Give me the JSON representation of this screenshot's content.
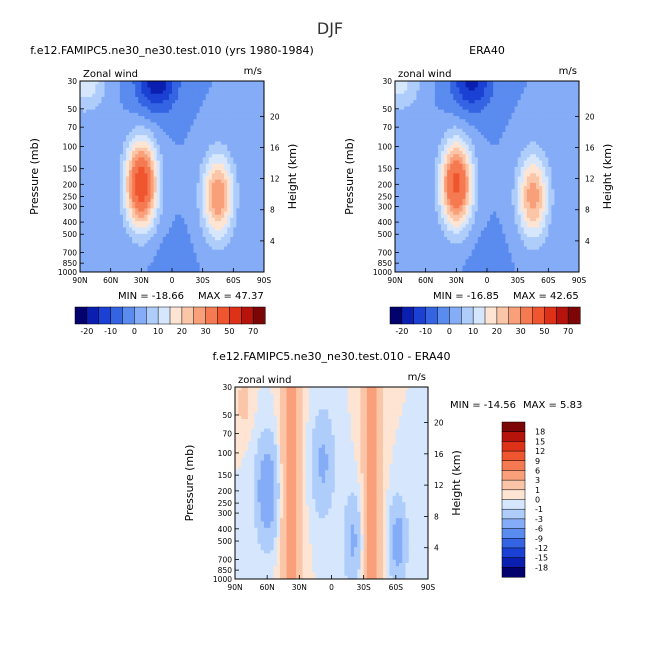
{
  "page_title": "DJF",
  "chart_data": [
    {
      "type": "heatmap",
      "title": "f.e12.FAMIPC5.ne30_ne30.test.010 (yrs 1980-1984)",
      "left_label": "Zonal wind",
      "units": "m/s",
      "ylabel": "Pressure (mb)",
      "ylabel_right": "Height (km)",
      "x_ticks": [
        "90N",
        "60N",
        "30N",
        "0",
        "30S",
        "60S",
        "90S"
      ],
      "y_ticks": [
        "30",
        "50",
        "70",
        "100",
        "150",
        "200",
        "250",
        "300",
        "400",
        "500",
        "700",
        "850",
        "1000"
      ],
      "y_right_ticks": [
        "20",
        "16",
        "12",
        "8",
        "4"
      ],
      "min_text": "MIN = -18.66",
      "max_text": "MAX = 47.37",
      "colorbar_labels": [
        "-20",
        "-10",
        "0",
        "10",
        "20",
        "30",
        "50",
        "70"
      ],
      "levels": [
        -25,
        -20,
        -15,
        -10,
        -5,
        0,
        5,
        10,
        15,
        20,
        25,
        30,
        40,
        50,
        60,
        70
      ],
      "jets": [
        {
          "lat": 30,
          "p": 200,
          "peak": 47.37
        },
        {
          "lat": -45,
          "p": 250,
          "peak": 30
        },
        {
          "lat": 15,
          "p": 30,
          "peak": -18.66
        },
        {
          "lat": 85,
          "p": 30,
          "peak": 14
        }
      ]
    },
    {
      "type": "heatmap",
      "title": "ERA40",
      "left_label": "zonal wind",
      "units": "m/s",
      "ylabel": "Pressure (mb)",
      "ylabel_right": "Height (km)",
      "x_ticks": [
        "90N",
        "60N",
        "30N",
        "0",
        "30S",
        "60S",
        "90S"
      ],
      "y_ticks": [
        "30",
        "50",
        "70",
        "100",
        "150",
        "200",
        "250",
        "300",
        "400",
        "500",
        "700",
        "850",
        "1000"
      ],
      "y_right_ticks": [
        "20",
        "16",
        "12",
        "8",
        "4"
      ],
      "min_text": "MIN = -16.85",
      "max_text": "MAX = 42.65",
      "colorbar_labels": [
        "-20",
        "-10",
        "0",
        "10",
        "20",
        "30",
        "50",
        "70"
      ],
      "levels": [
        -25,
        -20,
        -15,
        -10,
        -5,
        0,
        5,
        10,
        15,
        20,
        25,
        30,
        40,
        50,
        60,
        70
      ],
      "jets": [
        {
          "lat": 30,
          "p": 200,
          "peak": 42.65
        },
        {
          "lat": -45,
          "p": 250,
          "peak": 28
        },
        {
          "lat": 15,
          "p": 30,
          "peak": -16.85
        },
        {
          "lat": 85,
          "p": 30,
          "peak": 12
        }
      ]
    },
    {
      "type": "heatmap",
      "title": "f.e12.FAMIPC5.ne30_ne30.test.010 - ERA40",
      "left_label": "zonal wind",
      "units": "m/s",
      "ylabel": "Pressure (mb)",
      "ylabel_right": "Height (km)",
      "x_ticks": [
        "90N",
        "60N",
        "30N",
        "0",
        "30S",
        "60S",
        "90S"
      ],
      "y_ticks": [
        "30",
        "50",
        "70",
        "100",
        "150",
        "200",
        "250",
        "300",
        "400",
        "500",
        "700",
        "850",
        "1000"
      ],
      "y_right_ticks": [
        "20",
        "16",
        "12",
        "8",
        "4"
      ],
      "min_text": "MIN = -14.56",
      "max_text": "MAX =   5.83",
      "colorbar_labels": [
        "18",
        "15",
        "12",
        "9",
        "6",
        "3",
        "1",
        "0",
        "-1",
        "-3",
        "-6",
        "-9",
        "-12",
        "-15",
        "-18"
      ],
      "levels": [
        -21,
        -18,
        -15,
        -12,
        -9,
        -6,
        -3,
        -1,
        0,
        1,
        3,
        6,
        9,
        12,
        15,
        18,
        21
      ]
    }
  ],
  "colors": {
    "model_palette": [
      "#03016b",
      "#0a1fb0",
      "#1b41d4",
      "#3564e3",
      "#5a8bef",
      "#85acf6",
      "#aecdfb",
      "#d6e7fd",
      "#fde4d3",
      "#fbc5a8",
      "#f9a07b",
      "#f57a52",
      "#ef552f",
      "#dd3118",
      "#b5130c",
      "#7c0506"
    ],
    "diff_palette": [
      "#03016b",
      "#0a1fb0",
      "#1b41d4",
      "#3564e3",
      "#5a8bef",
      "#85acf6",
      "#aecdfb",
      "#d6e7fd",
      "#fde4d3",
      "#fbc5a8",
      "#f9a07b",
      "#f57a52",
      "#ef552f",
      "#dd3118",
      "#b5130c",
      "#7c0506"
    ]
  }
}
